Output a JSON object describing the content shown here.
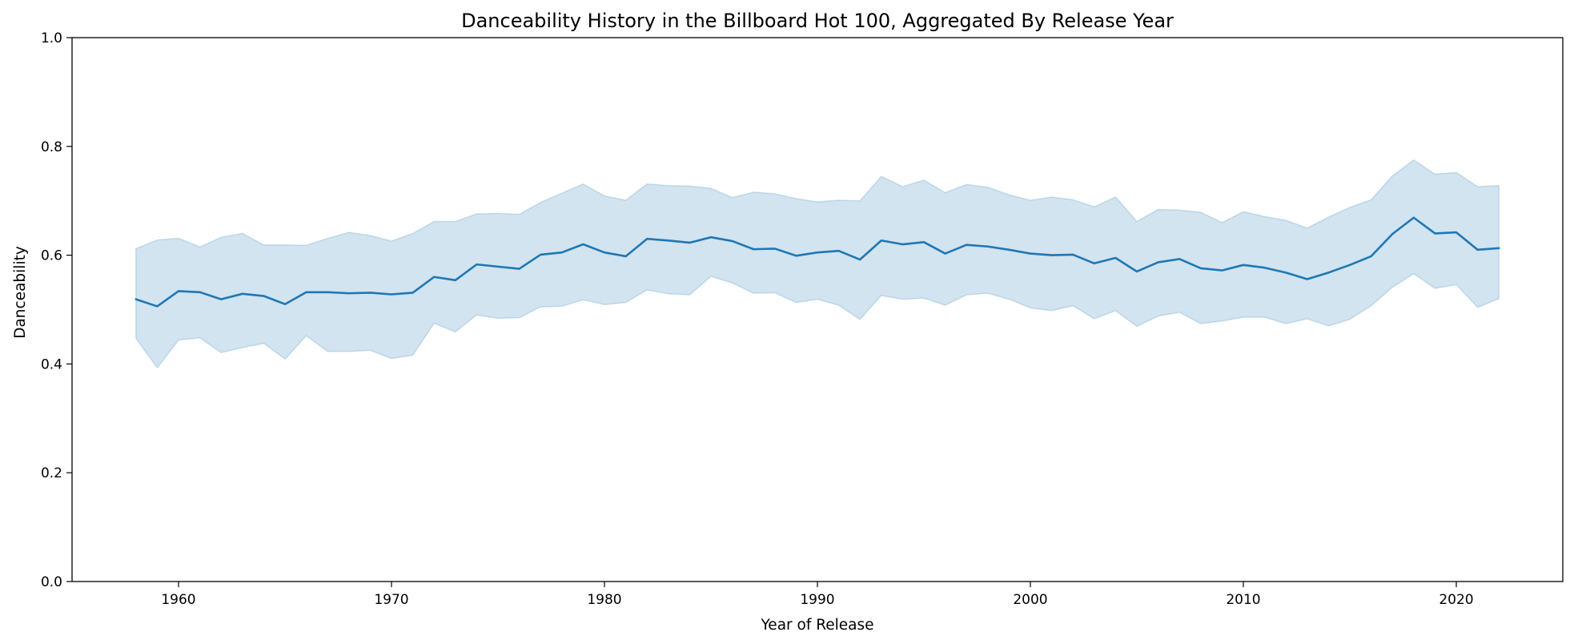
{
  "chart_data": {
    "type": "line",
    "title": "Danceability History in the Billboard Hot 100, Aggregated By Release Year",
    "xlabel": "Year of Release",
    "ylabel": "Danceability",
    "xlim": [
      1955,
      2025
    ],
    "ylim": [
      0.0,
      1.0
    ],
    "xticks": [
      1960,
      1970,
      1980,
      1990,
      2000,
      2010,
      2020
    ],
    "yticks": [
      "0.0",
      "0.2",
      "0.4",
      "0.6",
      "0.8",
      "1.0"
    ],
    "grid": false,
    "legend": null,
    "line_color": "#1f77b4",
    "band_color": "#1f77b4",
    "x": [
      1958,
      1959,
      1960,
      1961,
      1962,
      1963,
      1964,
      1965,
      1966,
      1967,
      1968,
      1969,
      1970,
      1971,
      1972,
      1973,
      1974,
      1975,
      1976,
      1977,
      1978,
      1979,
      1980,
      1981,
      1982,
      1983,
      1984,
      1985,
      1986,
      1987,
      1988,
      1989,
      1990,
      1991,
      1992,
      1993,
      1994,
      1995,
      1996,
      1997,
      1998,
      1999,
      2000,
      2001,
      2002,
      2003,
      2004,
      2005,
      2006,
      2007,
      2008,
      2009,
      2010,
      2011,
      2012,
      2013,
      2014,
      2015,
      2016,
      2017,
      2018,
      2019,
      2020,
      2021,
      2022
    ],
    "series": [
      {
        "values": [
          0.519,
          0.506,
          0.534,
          0.532,
          0.519,
          0.529,
          0.525,
          0.51,
          0.532,
          0.532,
          0.53,
          0.531,
          0.528,
          0.531,
          0.56,
          0.554,
          0.583,
          0.579,
          0.575,
          0.601,
          0.605,
          0.62,
          0.605,
          0.598,
          0.63,
          0.627,
          0.623,
          0.633,
          0.626,
          0.611,
          0.612,
          0.599,
          0.605,
          0.608,
          0.592,
          0.627,
          0.62,
          0.624,
          0.603,
          0.619,
          0.616,
          0.61,
          0.603,
          0.6,
          0.601,
          0.585,
          0.595,
          0.57,
          0.587,
          0.593,
          0.576,
          0.572,
          0.582,
          0.577,
          0.568,
          0.556,
          0.568,
          0.582,
          0.598,
          0.639,
          0.669,
          0.64,
          0.642,
          0.61,
          0.613
        ],
        "upper": [
          0.612,
          0.628,
          0.631,
          0.615,
          0.633,
          0.64,
          0.619,
          0.619,
          0.618,
          0.631,
          0.642,
          0.636,
          0.626,
          0.64,
          0.662,
          0.662,
          0.676,
          0.677,
          0.675,
          0.697,
          0.714,
          0.731,
          0.709,
          0.701,
          0.731,
          0.728,
          0.727,
          0.723,
          0.706,
          0.716,
          0.713,
          0.704,
          0.698,
          0.701,
          0.7,
          0.745,
          0.726,
          0.738,
          0.715,
          0.73,
          0.725,
          0.711,
          0.701,
          0.707,
          0.702,
          0.689,
          0.707,
          0.662,
          0.684,
          0.683,
          0.679,
          0.66,
          0.68,
          0.671,
          0.664,
          0.65,
          0.67,
          0.688,
          0.702,
          0.746,
          0.775,
          0.749,
          0.752,
          0.726,
          0.728
        ],
        "lower": [
          0.447,
          0.393,
          0.444,
          0.448,
          0.421,
          0.43,
          0.438,
          0.409,
          0.452,
          0.423,
          0.423,
          0.425,
          0.41,
          0.416,
          0.475,
          0.459,
          0.49,
          0.484,
          0.485,
          0.505,
          0.506,
          0.518,
          0.509,
          0.513,
          0.536,
          0.529,
          0.527,
          0.561,
          0.549,
          0.53,
          0.531,
          0.513,
          0.519,
          0.508,
          0.482,
          0.526,
          0.519,
          0.521,
          0.508,
          0.527,
          0.53,
          0.519,
          0.503,
          0.498,
          0.507,
          0.483,
          0.498,
          0.469,
          0.488,
          0.495,
          0.474,
          0.479,
          0.486,
          0.486,
          0.474,
          0.483,
          0.47,
          0.482,
          0.507,
          0.541,
          0.566,
          0.539,
          0.546,
          0.504,
          0.52
        ]
      }
    ]
  }
}
